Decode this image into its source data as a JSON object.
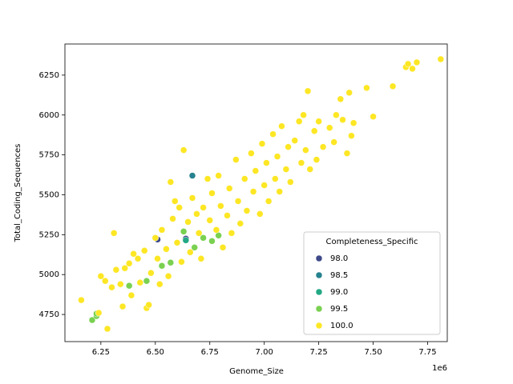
{
  "chart_data": {
    "type": "scatter",
    "x_label": "Genome_Size",
    "y_label": "Total_Coding_Sequences",
    "x_offset_label": "1e6",
    "legend_title": "Completeness_Specific",
    "legend": "lower right",
    "grid": false,
    "xlim": [
      6085000,
      7840000
    ],
    "ylim": [
      4580,
      6445
    ],
    "xticks": [
      {
        "value": 6250000,
        "label": "6.25"
      },
      {
        "value": 6500000,
        "label": "6.50"
      },
      {
        "value": 6750000,
        "label": "6.75"
      },
      {
        "value": 7000000,
        "label": "7.00"
      },
      {
        "value": 7250000,
        "label": "7.25"
      },
      {
        "value": 7500000,
        "label": "7.50"
      },
      {
        "value": 7750000,
        "label": "7.75"
      }
    ],
    "yticks": [
      4750,
      5000,
      5250,
      5500,
      5750,
      6000,
      6250
    ],
    "series": [
      {
        "name": "98.0",
        "color": "#3e4989",
        "x": [
          6510000,
          6640000
        ],
        "values": [
          5220,
          5225
        ]
      },
      {
        "name": "98.5",
        "color": "#26828e",
        "x": [
          6670000
        ],
        "values": [
          5620
        ]
      },
      {
        "name": "99.0",
        "color": "#22a884",
        "x": [
          6640000
        ],
        "values": [
          5215
        ]
      },
      {
        "name": "99.5",
        "color": "#7ad151",
        "x": [
          6210000,
          6230000,
          6230000,
          6380000,
          6460000,
          6530000,
          6570000,
          6630000,
          6720000,
          6760000,
          6790000,
          6680000
        ],
        "values": [
          4715,
          4740,
          4755,
          4930,
          4960,
          5055,
          5075,
          5270,
          5230,
          5210,
          5245,
          5170
        ]
      },
      {
        "name": "100.0",
        "color": "#fde725",
        "x": [
          6160000,
          6240000,
          6250000,
          6270000,
          6280000,
          6300000,
          6310000,
          6320000,
          6340000,
          6350000,
          6360000,
          6380000,
          6390000,
          6400000,
          6420000,
          6430000,
          6450000,
          6460000,
          6470000,
          6480000,
          6500000,
          6510000,
          6520000,
          6530000,
          6550000,
          6560000,
          6570000,
          6580000,
          6590000,
          6600000,
          6610000,
          6620000,
          6630000,
          6650000,
          6660000,
          6670000,
          6690000,
          6700000,
          6710000,
          6720000,
          6740000,
          6750000,
          6760000,
          6780000,
          6790000,
          6800000,
          6810000,
          6830000,
          6840000,
          6850000,
          6870000,
          6880000,
          6890000,
          6910000,
          6920000,
          6940000,
          6950000,
          6960000,
          6980000,
          6990000,
          7000000,
          7010000,
          7020000,
          7040000,
          7050000,
          7060000,
          7070000,
          7080000,
          7100000,
          7110000,
          7120000,
          7140000,
          7160000,
          7170000,
          7180000,
          7190000,
          7200000,
          7210000,
          7230000,
          7240000,
          7250000,
          7270000,
          7300000,
          7320000,
          7330000,
          7350000,
          7360000,
          7380000,
          7390000,
          7400000,
          7410000,
          7470000,
          7500000,
          7590000,
          7650000,
          7660000,
          7680000,
          7700000,
          7810000
        ],
        "values": [
          4840,
          4760,
          4990,
          4960,
          4660,
          4920,
          5260,
          5030,
          4940,
          4800,
          5040,
          5070,
          4870,
          5130,
          5100,
          4950,
          5150,
          4790,
          4810,
          5010,
          5230,
          5100,
          4940,
          5280,
          5160,
          4990,
          5580,
          5350,
          5460,
          5200,
          5420,
          5080,
          5780,
          5330,
          5140,
          5480,
          5380,
          5260,
          5100,
          5420,
          5600,
          5340,
          5510,
          5280,
          5620,
          5430,
          5170,
          5370,
          5540,
          5260,
          5720,
          5460,
          5320,
          5600,
          5400,
          5760,
          5520,
          5650,
          5380,
          5820,
          5560,
          5700,
          5460,
          5880,
          5600,
          5740,
          5520,
          5930,
          5660,
          5800,
          5580,
          5840,
          5960,
          5700,
          6000,
          5780,
          6150,
          5660,
          5900,
          5720,
          5960,
          5800,
          5920,
          5830,
          6000,
          6100,
          5970,
          5760,
          6140,
          5870,
          5950,
          6170,
          5990,
          6180,
          6300,
          6320,
          6290,
          6330,
          6350
        ]
      }
    ]
  }
}
